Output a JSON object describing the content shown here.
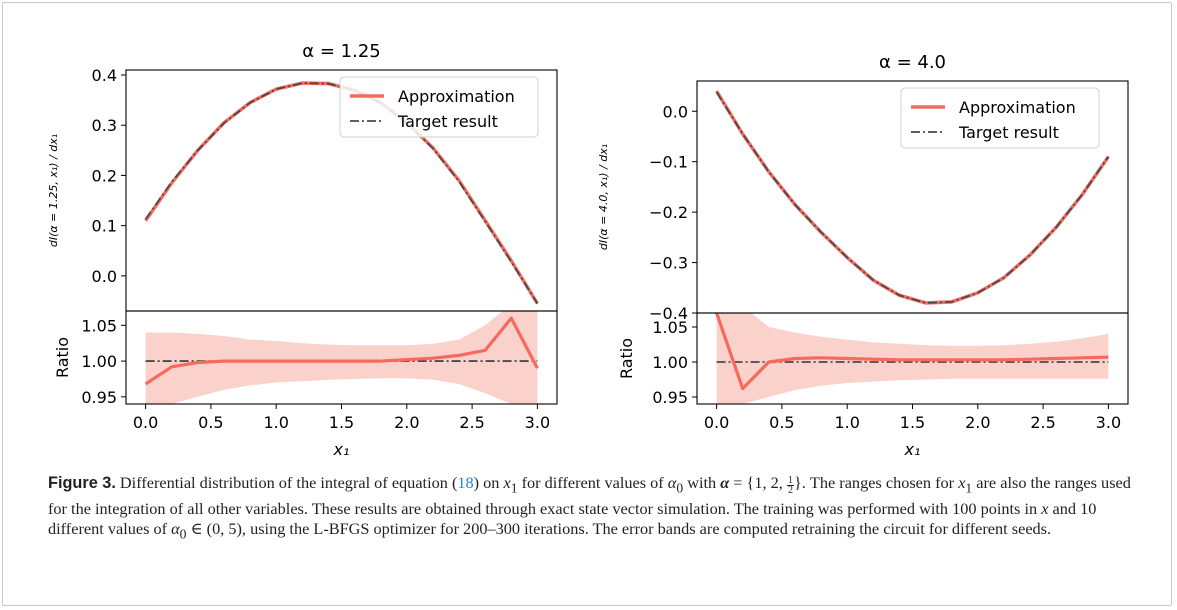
{
  "figure": {
    "caption_label": "Figure 3.",
    "caption_parts": {
      "p1": " Differential distribution of the integral of equation (",
      "eq_ref": "18",
      "p2": ") on ",
      "x1": "x",
      "p3": " for different values of ",
      "alpha0": "α",
      "p4": " with ",
      "alpha_bold": "α",
      "p5": " = {1, 2, ",
      "frac_num": "1",
      "frac_den": "2",
      "p6": "}. The ranges chosen for ",
      "p7": " are also the ranges used for the integration of all other variables. These results are obtained through exact state vector simulation. The training was performed with 100 points in ",
      "xvar": "x",
      "p8": " and 10 different values of ",
      "p9": " ∈ (0, 5), using the L-BFGS optimizer for 200–300 iterations. The error bands are computed retraining the circuit for different seeds."
    }
  },
  "colors": {
    "approx": "#f56a5c",
    "band": "#f9c2bb",
    "target": "#4a4a4a",
    "axis": "#000000"
  },
  "chart_data": [
    {
      "type": "line",
      "title": "α = 1.25",
      "ylabel": "dI(α = 1.25, x₁) / dx₁",
      "xlabel": "x₁",
      "xlim": [
        -0.15,
        3.15
      ],
      "ylim": [
        -0.07,
        0.41
      ],
      "yticks": [
        0.0,
        0.1,
        0.2,
        0.3,
        0.4
      ],
      "ytick_labels": [
        "0.0",
        "0.1",
        "0.2",
        "0.3",
        "0.4"
      ],
      "xticks": [
        0.0,
        0.5,
        1.0,
        1.5,
        2.0,
        2.5,
        3.0
      ],
      "xtick_labels": [
        "0.0",
        "0.5",
        "1.0",
        "1.5",
        "2.0",
        "2.5",
        "3.0"
      ],
      "legend": {
        "placement": "top-right",
        "entries": [
          "Approximation",
          "Target result"
        ]
      },
      "x": [
        0.0,
        0.2,
        0.4,
        0.6,
        0.8,
        1.0,
        1.2,
        1.4,
        1.6,
        1.8,
        2.0,
        2.2,
        2.4,
        2.6,
        2.8,
        3.0
      ],
      "series": [
        {
          "name": "Approximation",
          "values": [
            0.11,
            0.185,
            0.25,
            0.305,
            0.345,
            0.372,
            0.384,
            0.383,
            0.37,
            0.345,
            0.305,
            0.255,
            0.19,
            0.11,
            0.03,
            -0.055
          ]
        },
        {
          "name": "Target result",
          "values": [
            0.113,
            0.187,
            0.25,
            0.304,
            0.345,
            0.372,
            0.384,
            0.383,
            0.369,
            0.344,
            0.304,
            0.254,
            0.188,
            0.108,
            0.028,
            -0.055
          ]
        }
      ],
      "ratio": {
        "ylabel": "Ratio",
        "ylim": [
          0.94,
          1.07
        ],
        "yticks": [
          0.95,
          1.0,
          1.05
        ],
        "ytick_labels": [
          "0.95",
          "1.00",
          "1.05"
        ],
        "values": [
          0.968,
          0.992,
          0.998,
          1.0,
          1.0,
          1.0,
          1.0,
          1.0,
          1.0,
          1.0,
          1.002,
          1.004,
          1.008,
          1.015,
          1.06,
          0.99
        ],
        "band_upper": [
          1.04,
          1.04,
          1.038,
          1.035,
          1.03,
          1.028,
          1.025,
          1.023,
          1.022,
          1.022,
          1.022,
          1.024,
          1.03,
          1.05,
          1.08,
          1.08
        ],
        "band_lower": [
          0.94,
          0.94,
          0.95,
          0.96,
          0.966,
          0.97,
          0.972,
          0.974,
          0.975,
          0.976,
          0.976,
          0.974,
          0.968,
          0.955,
          0.94,
          0.94
        ],
        "target": 1.0
      }
    },
    {
      "type": "line",
      "title": "α = 4.0",
      "ylabel": "dI(α = 4.0, x₁) / dx₁",
      "xlabel": "x₁",
      "xlim": [
        -0.15,
        3.15
      ],
      "ylim": [
        -0.4,
        0.06
      ],
      "yticks": [
        -0.4,
        -0.3,
        -0.2,
        -0.1,
        0.0
      ],
      "ytick_labels": [
        "−0.4",
        "−0.3",
        "−0.2",
        "−0.1",
        "0.0"
      ],
      "xticks": [
        0.0,
        0.5,
        1.0,
        1.5,
        2.0,
        2.5,
        3.0
      ],
      "xtick_labels": [
        "0.0",
        "0.5",
        "1.0",
        "1.5",
        "2.0",
        "2.5",
        "3.0"
      ],
      "legend": {
        "placement": "top-right",
        "entries": [
          "Approximation",
          "Target result"
        ]
      },
      "x": [
        0.0,
        0.2,
        0.4,
        0.6,
        0.8,
        1.0,
        1.2,
        1.4,
        1.6,
        1.8,
        2.0,
        2.2,
        2.4,
        2.6,
        2.8,
        3.0
      ],
      "series": [
        {
          "name": "Approximation",
          "values": [
            0.04,
            -0.045,
            -0.12,
            -0.185,
            -0.24,
            -0.29,
            -0.335,
            -0.365,
            -0.38,
            -0.378,
            -0.36,
            -0.33,
            -0.285,
            -0.23,
            -0.165,
            -0.09
          ]
        },
        {
          "name": "Target result",
          "values": [
            0.038,
            -0.045,
            -0.12,
            -0.185,
            -0.24,
            -0.29,
            -0.335,
            -0.365,
            -0.38,
            -0.378,
            -0.36,
            -0.33,
            -0.285,
            -0.23,
            -0.165,
            -0.09
          ]
        }
      ],
      "ratio": {
        "ylabel": "Ratio",
        "ylim": [
          0.94,
          1.07
        ],
        "yticks": [
          0.95,
          1.0,
          1.05
        ],
        "ytick_labels": [
          "0.95",
          "1.00",
          "1.05"
        ],
        "values": [
          1.07,
          0.962,
          1.0,
          1.005,
          1.006,
          1.005,
          1.004,
          1.003,
          1.003,
          1.003,
          1.003,
          1.003,
          1.004,
          1.005,
          1.006,
          1.007
        ],
        "band_upper": [
          1.08,
          1.08,
          1.05,
          1.042,
          1.036,
          1.032,
          1.028,
          1.026,
          1.024,
          1.023,
          1.023,
          1.024,
          1.026,
          1.029,
          1.034,
          1.04
        ],
        "band_lower": [
          0.94,
          0.94,
          0.95,
          0.96,
          0.966,
          0.97,
          0.972,
          0.974,
          0.975,
          0.976,
          0.976,
          0.976,
          0.976,
          0.976,
          0.976,
          0.976
        ],
        "target": 1.0
      }
    }
  ]
}
